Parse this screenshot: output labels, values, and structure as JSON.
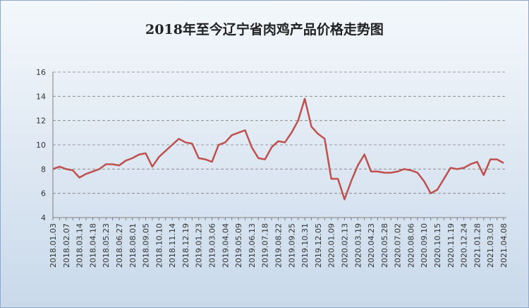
{
  "chart_data": {
    "type": "line",
    "title": "2018年至今辽宁省肉鸡产品价格走势图",
    "categories": [
      "2018.01.03",
      null,
      "2018.02.07",
      null,
      "2018.03.14",
      null,
      "2018.04.18",
      null,
      "2018.05.23",
      null,
      "2018.06.27",
      null,
      "2018.08.01",
      null,
      "2018.09.05",
      null,
      "2018.10.10",
      null,
      "2018.11.14",
      null,
      "2018.12.19",
      null,
      "2019.01.23",
      null,
      "2019.03.06",
      null,
      "2019.04.04",
      null,
      "2019.05.09",
      null,
      "2019.06.13",
      null,
      "2019.07.18",
      null,
      "2019.08.22",
      null,
      "2019.09.25",
      null,
      "2019.10.31",
      null,
      "2019.12.05",
      null,
      "2020.01.09",
      null,
      "2020.02.13",
      null,
      "2020.03.19",
      null,
      "2020.04.23",
      null,
      "2020.05.28",
      null,
      "2020.07.02",
      null,
      "2020.08.06",
      null,
      "2020.09.10",
      null,
      "2020.10.15",
      null,
      "2020.11.19",
      null,
      "2020.12.24",
      null,
      "2021.01.28",
      null,
      "2021.03.03",
      null,
      "2021.04.08"
    ],
    "series": [
      {
        "color": "#c0504d",
        "values": [
          8.0,
          8.2,
          8.0,
          7.9,
          7.3,
          7.6,
          7.8,
          8.0,
          8.4,
          8.4,
          8.3,
          8.7,
          8.9,
          9.2,
          9.3,
          8.2,
          9.0,
          9.5,
          10.0,
          10.5,
          10.2,
          10.1,
          8.9,
          8.8,
          8.6,
          10.0,
          10.2,
          10.8,
          11.0,
          11.2,
          9.8,
          8.9,
          8.8,
          9.8,
          10.3,
          10.2,
          11.0,
          12.0,
          13.8,
          11.5,
          10.9,
          10.5,
          7.2,
          7.2,
          5.5,
          7.0,
          8.3,
          9.2,
          7.8,
          7.8,
          7.7,
          7.7,
          7.8,
          8.0,
          7.9,
          7.7,
          7.0,
          6.0,
          6.3,
          7.2,
          8.1,
          8.0,
          8.1,
          8.4,
          8.6,
          7.5,
          8.8,
          8.8,
          8.5
        ]
      }
    ],
    "ylim": [
      4,
      16
    ],
    "yticks": [
      4,
      6,
      8,
      10,
      12,
      14,
      16
    ],
    "grid": true
  }
}
